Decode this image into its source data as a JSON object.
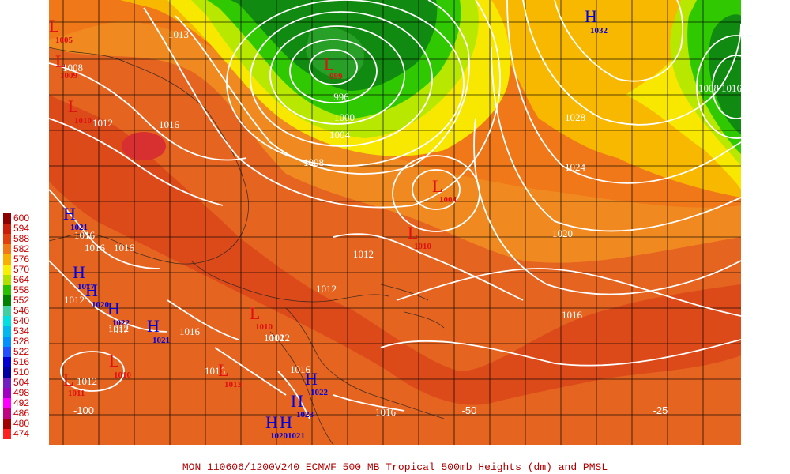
{
  "caption": "MON 110606/1200V240  ECMWF  500 MB Tropical 500mb Heights (dm) and PMSL",
  "legend": {
    "items": [
      {
        "label": "600",
        "color": "#8b0000"
      },
      {
        "label": "594",
        "color": "#c81e0a"
      },
      {
        "label": "588",
        "color": "#e04010"
      },
      {
        "label": "582",
        "color": "#f07818"
      },
      {
        "label": "576",
        "color": "#f8b000"
      },
      {
        "label": "570",
        "color": "#f8f000"
      },
      {
        "label": "564",
        "color": "#b0e000"
      },
      {
        "label": "558",
        "color": "#28c000"
      },
      {
        "label": "552",
        "color": "#008000"
      },
      {
        "label": "546",
        "color": "#40d0a0"
      },
      {
        "label": "540",
        "color": "#00e0e0"
      },
      {
        "label": "534",
        "color": "#00b8f0"
      },
      {
        "label": "528",
        "color": "#0090ff"
      },
      {
        "label": "522",
        "color": "#2050ff"
      },
      {
        "label": "516",
        "color": "#0000d0"
      },
      {
        "label": "510",
        "color": "#0000a0"
      },
      {
        "label": "504",
        "color": "#7020c0"
      },
      {
        "label": "498",
        "color": "#a000c0"
      },
      {
        "label": "492",
        "color": "#ff00ff"
      },
      {
        "label": "486",
        "color": "#c00080"
      },
      {
        "label": "480",
        "color": "#a00000"
      },
      {
        "label": "474",
        "color": "#ff2020"
      }
    ]
  },
  "colors": {
    "shade_594": "#e0501a",
    "shade_588": "#f07818",
    "shade_582": "#f08a20",
    "shade_576": "#f8b800",
    "shade_570": "#f8e800",
    "shade_564": "#b8e800",
    "shade_558": "#30c800",
    "shade_552": "#008800",
    "shade_600": "#d83030",
    "land": "#c85a3a",
    "isobar": "#ffffff",
    "high": "#0000dd",
    "low": "#dd1111"
  },
  "longitude_labels": [
    "-100",
    "-50",
    "-25"
  ],
  "pressure_centers": [
    {
      "letter": "L",
      "value": "1005",
      "kind": "low"
    },
    {
      "letter": "L",
      "value": "1009",
      "kind": "low"
    },
    {
      "letter": "L",
      "value": "1010",
      "kind": "low"
    },
    {
      "letter": "L",
      "value": "999",
      "kind": "low"
    },
    {
      "letter": "H",
      "value": "1032",
      "kind": "high"
    },
    {
      "letter": "L",
      "value": "1004",
      "kind": "low"
    },
    {
      "letter": "L",
      "value": "1010",
      "kind": "low"
    },
    {
      "letter": "H",
      "value": "1021",
      "kind": "high"
    },
    {
      "letter": "H",
      "value": "1017",
      "kind": "high"
    },
    {
      "letter": "H",
      "value": "1020",
      "kind": "high"
    },
    {
      "letter": "H",
      "value": "1022",
      "kind": "high"
    },
    {
      "letter": "H",
      "value": "1021",
      "kind": "high"
    },
    {
      "letter": "L",
      "value": "1010",
      "kind": "low"
    },
    {
      "letter": "L",
      "value": "1010",
      "kind": "low"
    },
    {
      "letter": "L",
      "value": "1011",
      "kind": "low"
    },
    {
      "letter": "L",
      "value": "1013",
      "kind": "low"
    },
    {
      "letter": "H",
      "value": "1022",
      "kind": "high"
    },
    {
      "letter": "H",
      "value": "1023",
      "kind": "high"
    },
    {
      "letter": "H",
      "value": "1020",
      "kind": "high"
    },
    {
      "letter": "H",
      "value": "1021",
      "kind": "high"
    }
  ],
  "isobar_labels": [
    "1008",
    "1012",
    "1016",
    "1016",
    "1016",
    "1012",
    "1016",
    "1012",
    "1013",
    "1012",
    "996",
    "1000",
    "1004",
    "1008",
    "1028",
    "1024",
    "1020",
    "1012",
    "1012",
    "1016",
    "1012",
    "1016",
    "1016",
    "1016",
    "1012",
    "1012",
    "1008",
    "1016",
    "1016"
  ]
}
